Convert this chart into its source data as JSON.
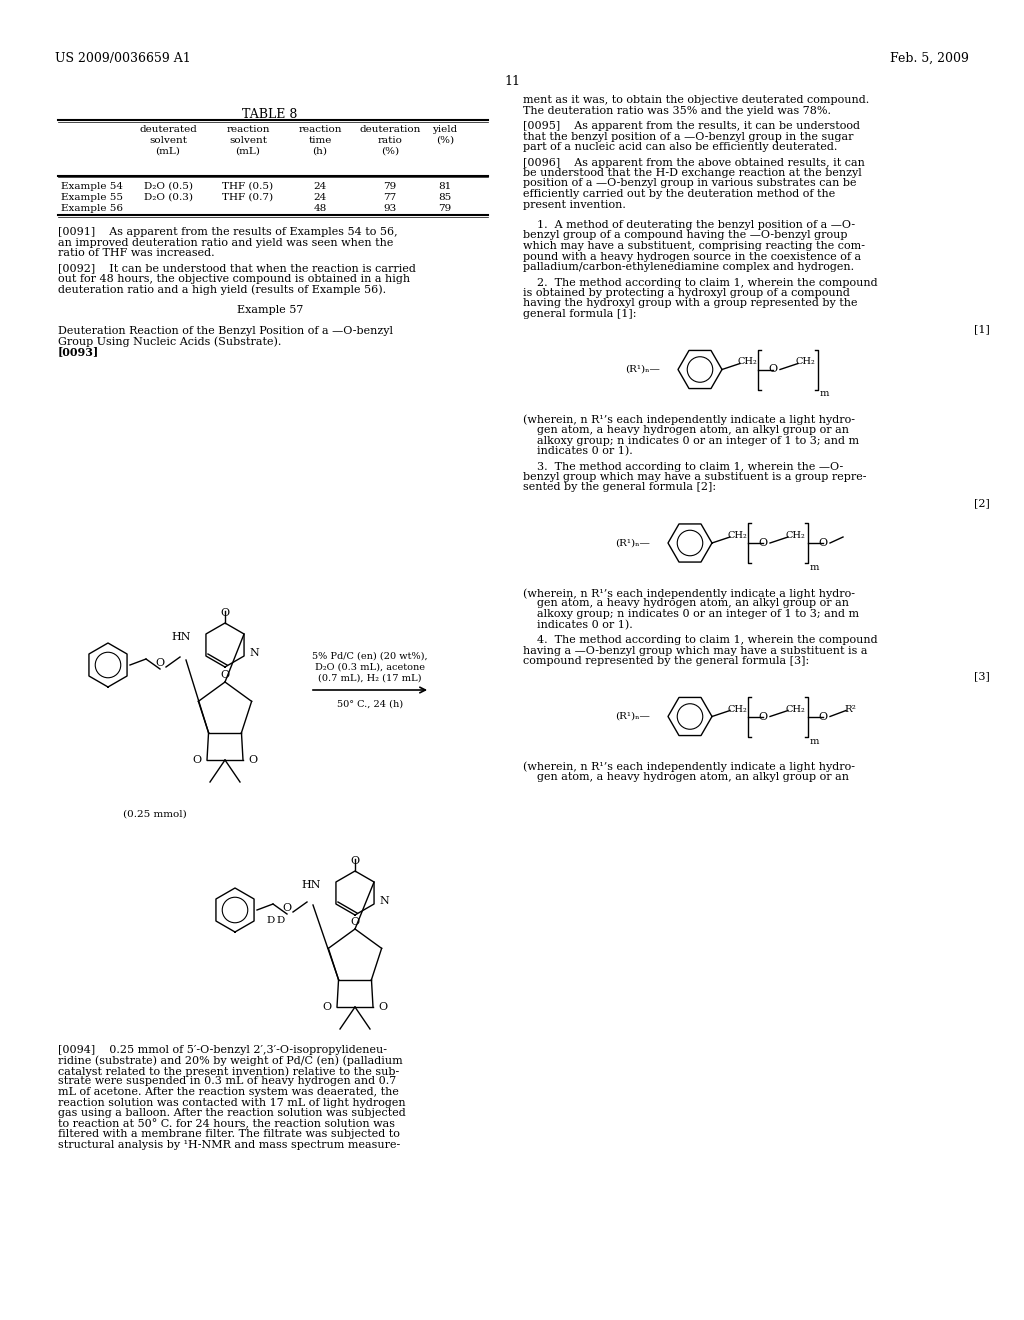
{
  "page_number": "11",
  "left_header": "US 2009/0036659 A1",
  "right_header": "Feb. 5, 2009",
  "background_color": "#ffffff"
}
